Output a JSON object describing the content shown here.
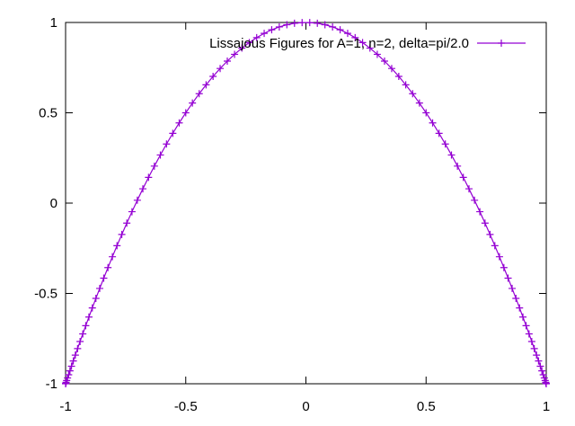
{
  "chart_data": {
    "type": "line",
    "title": "",
    "xlabel": "",
    "ylabel": "",
    "xlim": [
      -1,
      1
    ],
    "ylim": [
      -1,
      1
    ],
    "x_ticks": [
      "-1",
      "-0.5",
      "0",
      "0.5",
      "1"
    ],
    "y_ticks": [
      "1",
      "0.5",
      "0",
      "-0.5",
      "-1"
    ],
    "grid": false,
    "legend_position": "top-right",
    "series": [
      {
        "name": "Lissajous Figures for A=1, n=2, delta=pi/2.0",
        "color": "#9400d3",
        "marker": "plus",
        "function": "x = sin(t), y = cos(2t), t in [-pi/2, pi/2]",
        "samples": 100
      }
    ]
  }
}
